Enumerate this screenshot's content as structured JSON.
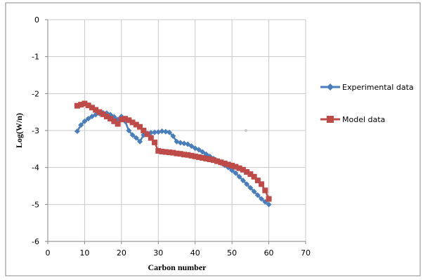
{
  "chart_data": {
    "type": "line",
    "title": "",
    "xlabel": "Carbon number",
    "ylabel": "Log(W/n)",
    "xlim": [
      0,
      70
    ],
    "ylim": [
      -6,
      0
    ],
    "xticks": [
      "0",
      "10",
      "20",
      "30",
      "40",
      "50",
      "60",
      "70"
    ],
    "yticks": [
      "0",
      "-1",
      "-2",
      "-3",
      "-4",
      "-5",
      "-6"
    ],
    "grid": true,
    "legend_position": "right",
    "series": [
      {
        "name": "Experimental data",
        "color": "#4a7ebb",
        "marker": "diamond",
        "x": [
          8,
          9,
          10,
          11,
          12,
          13,
          14,
          15,
          16,
          17,
          18,
          19,
          20,
          21,
          22,
          23,
          24,
          25,
          26,
          27,
          28,
          29,
          30,
          31,
          32,
          33,
          34,
          35,
          36,
          37,
          38,
          39,
          40,
          41,
          42,
          43,
          44,
          45,
          46,
          47,
          48,
          49,
          50,
          51,
          52,
          53,
          54,
          55,
          56,
          57,
          58,
          59,
          60
        ],
        "y": [
          -3.02,
          -2.85,
          -2.75,
          -2.68,
          -2.62,
          -2.57,
          -2.54,
          -2.52,
          -2.53,
          -2.57,
          -2.63,
          -2.7,
          -2.62,
          -2.75,
          -3.0,
          -3.12,
          -3.2,
          -3.3,
          -3.12,
          -3.08,
          -3.06,
          -3.05,
          -3.04,
          -3.02,
          -3.03,
          -3.05,
          -3.15,
          -3.3,
          -3.33,
          -3.35,
          -3.37,
          -3.42,
          -3.48,
          -3.52,
          -3.58,
          -3.64,
          -3.7,
          -3.76,
          -3.82,
          -3.88,
          -3.94,
          -4.0,
          -4.08,
          -4.15,
          -4.25,
          -4.35,
          -4.45,
          -4.55,
          -4.65,
          -4.75,
          -4.85,
          -4.93,
          -5.0
        ]
      },
      {
        "name": "Model data",
        "color": "#be4b48",
        "marker": "square",
        "x": [
          8,
          9,
          10,
          11,
          12,
          13,
          14,
          15,
          16,
          17,
          18,
          19,
          20,
          21,
          22,
          23,
          24,
          25,
          26,
          27,
          28,
          29,
          30,
          31,
          32,
          33,
          34,
          35,
          36,
          37,
          38,
          39,
          40,
          41,
          42,
          43,
          44,
          45,
          46,
          47,
          48,
          49,
          50,
          51,
          52,
          53,
          54,
          55,
          56,
          57,
          58,
          59,
          60
        ],
        "y": [
          -2.33,
          -2.3,
          -2.27,
          -2.32,
          -2.38,
          -2.44,
          -2.5,
          -2.56,
          -2.62,
          -2.68,
          -2.75,
          -2.82,
          -2.7,
          -2.68,
          -2.72,
          -2.78,
          -2.84,
          -2.9,
          -3.0,
          -3.1,
          -3.2,
          -3.32,
          -3.55,
          -3.57,
          -3.58,
          -3.59,
          -3.6,
          -3.62,
          -3.63,
          -3.65,
          -3.66,
          -3.68,
          -3.7,
          -3.72,
          -3.74,
          -3.76,
          -3.78,
          -3.8,
          -3.83,
          -3.86,
          -3.89,
          -3.92,
          -3.95,
          -3.98,
          -4.02,
          -4.06,
          -4.12,
          -4.18,
          -4.25,
          -4.35,
          -4.45,
          -4.62,
          -4.85
        ]
      }
    ]
  }
}
